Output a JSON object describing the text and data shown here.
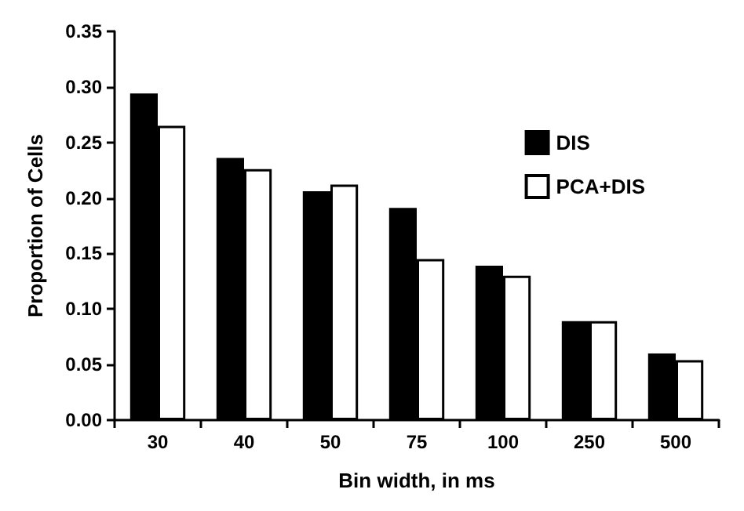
{
  "chart_data": {
    "type": "bar",
    "xlabel": "Bin width, in ms",
    "ylabel": "Proportion of Cells",
    "categories": [
      "30",
      "40",
      "50",
      "75",
      "100",
      "250",
      "500"
    ],
    "series": [
      {
        "name": "DIS",
        "color": "#000000",
        "values": [
          0.294,
          0.236,
          0.206,
          0.191,
          0.139,
          0.089,
          0.06
        ]
      },
      {
        "name": "PCA+DIS",
        "color": "#ffffff",
        "values": [
          0.265,
          0.226,
          0.212,
          0.145,
          0.13,
          0.089,
          0.054
        ]
      }
    ],
    "ylim": [
      0,
      0.35
    ],
    "yticks": [
      {
        "value": 0,
        "label": "0.00"
      },
      0.05,
      {
        "value": 0.1,
        "label": "0.10"
      },
      0.15,
      {
        "value": 0.2,
        "label": "0.20"
      },
      0.25,
      {
        "value": 0.3,
        "label": "0.30"
      },
      0.35
    ],
    "grid": false,
    "legend": "top right"
  }
}
